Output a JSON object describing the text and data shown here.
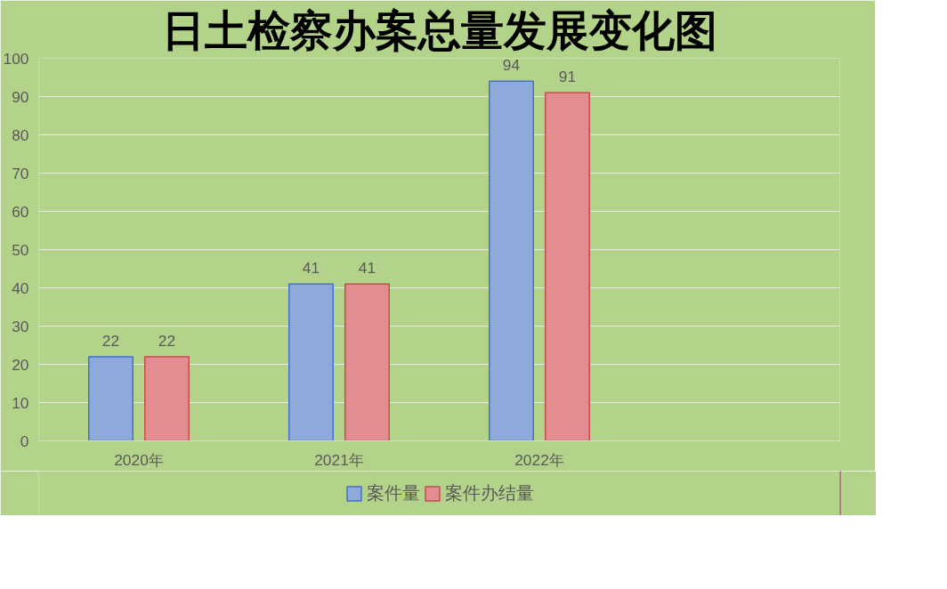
{
  "chart_data": {
    "type": "bar",
    "title": "日土检察办案总量发展变化图",
    "categories": [
      "2020年",
      "2021年",
      "2022年",
      null
    ],
    "series": [
      {
        "name": "案件量",
        "color": "#8eaadb",
        "values": [
          22,
          41,
          94,
          null
        ]
      },
      {
        "name": "案件办结量",
        "color": "#e38d90",
        "values": [
          22,
          41,
          91,
          null
        ]
      }
    ],
    "ylim": [
      0,
      100
    ],
    "yticks": [
      0,
      10,
      20,
      30,
      40,
      50,
      60,
      70,
      80,
      90,
      100
    ],
    "grid": "y",
    "legend": "bottom",
    "data_labels": true
  }
}
